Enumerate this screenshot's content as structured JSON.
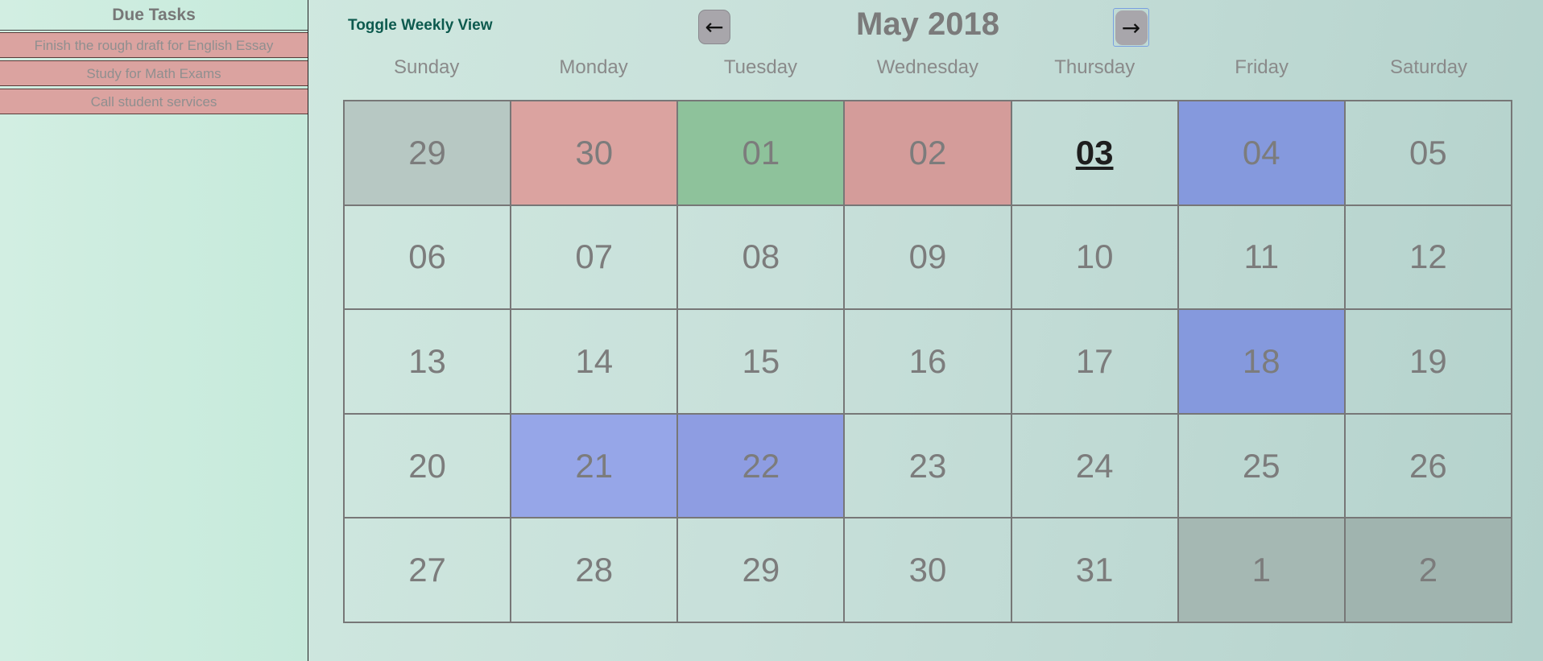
{
  "sidebar": {
    "title": "Due Tasks",
    "tasks": [
      "Finish the rough draft for English Essay",
      "Study for Math Exams",
      "Call student services"
    ]
  },
  "header": {
    "toggle_label": "Toggle Weekly View",
    "prev_label": "←",
    "next_label": "→",
    "month_title": "May 2018"
  },
  "weekdays": [
    "Sunday",
    "Monday",
    "Tuesday",
    "Wednesday",
    "Thursday",
    "Friday",
    "Saturday"
  ],
  "calendar": {
    "days": [
      {
        "label": "29",
        "bg": "#b7c8c3"
      },
      {
        "label": "30",
        "bg": "#dba3a0"
      },
      {
        "label": "01",
        "bg": "#8ec29b"
      },
      {
        "label": "02",
        "bg": "#d49c9a"
      },
      {
        "label": "03",
        "bg": "",
        "today": true
      },
      {
        "label": "04",
        "bg": "#8599dd"
      },
      {
        "label": "05",
        "bg": ""
      },
      {
        "label": "06",
        "bg": ""
      },
      {
        "label": "07",
        "bg": ""
      },
      {
        "label": "08",
        "bg": ""
      },
      {
        "label": "09",
        "bg": ""
      },
      {
        "label": "10",
        "bg": ""
      },
      {
        "label": "11",
        "bg": ""
      },
      {
        "label": "12",
        "bg": ""
      },
      {
        "label": "13",
        "bg": ""
      },
      {
        "label": "14",
        "bg": ""
      },
      {
        "label": "15",
        "bg": ""
      },
      {
        "label": "16",
        "bg": ""
      },
      {
        "label": "17",
        "bg": ""
      },
      {
        "label": "18",
        "bg": "#8599dd"
      },
      {
        "label": "19",
        "bg": ""
      },
      {
        "label": "20",
        "bg": ""
      },
      {
        "label": "21",
        "bg": "#96a6e8"
      },
      {
        "label": "22",
        "bg": "#8e9de2"
      },
      {
        "label": "23",
        "bg": ""
      },
      {
        "label": "24",
        "bg": ""
      },
      {
        "label": "25",
        "bg": ""
      },
      {
        "label": "26",
        "bg": ""
      },
      {
        "label": "27",
        "bg": ""
      },
      {
        "label": "28",
        "bg": ""
      },
      {
        "label": "29",
        "bg": ""
      },
      {
        "label": "30",
        "bg": ""
      },
      {
        "label": "31",
        "bg": ""
      },
      {
        "label": "1",
        "bg": "#a5b8b3"
      },
      {
        "label": "2",
        "bg": "#a0b4af"
      }
    ]
  },
  "colors": {
    "task_bg": "#dba3a0",
    "toggle_text": "#0d5a4e",
    "event_blue": "#8599dd",
    "event_red": "#dba3a0",
    "event_green": "#8ec29b"
  }
}
